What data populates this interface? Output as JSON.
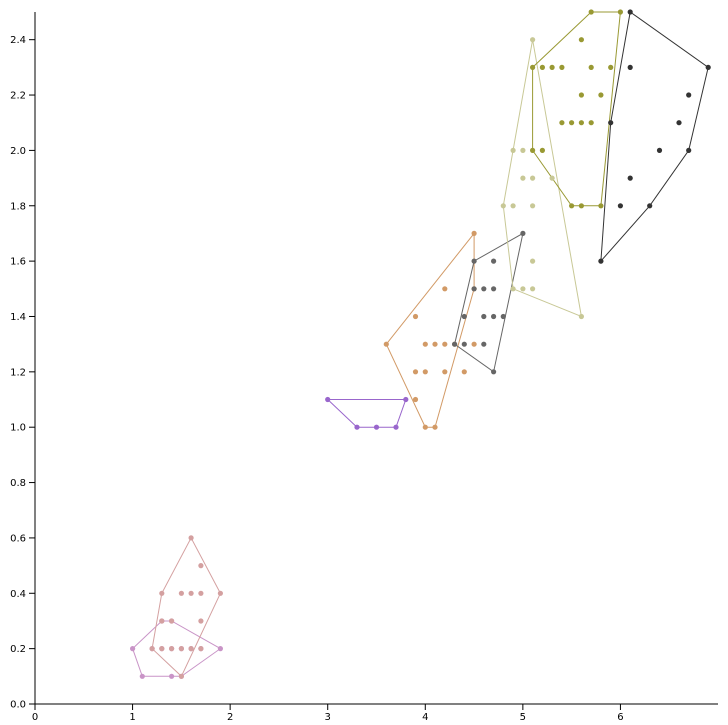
{
  "chart_data": {
    "type": "scatter",
    "title": "",
    "xlabel": "",
    "ylabel": "",
    "xlim": [
      0,
      7
    ],
    "ylim": [
      0,
      2.5
    ],
    "x_ticks": [
      "0",
      "1",
      "2",
      "3",
      "4",
      "5",
      "6"
    ],
    "y_ticks": [
      "0.0",
      "0.2",
      "0.4",
      "0.6",
      "0.8",
      "1.0",
      "1.2",
      "1.4",
      "1.6",
      "1.8",
      "2.0",
      "2.2",
      "2.4"
    ],
    "grid": false,
    "series": [
      {
        "color": "#c994c7",
        "points": [
          [
            1.0,
            0.2
          ],
          [
            1.1,
            0.1
          ],
          [
            1.2,
            0.2
          ],
          [
            1.3,
            0.2
          ],
          [
            1.4,
            0.2
          ],
          [
            1.4,
            0.1
          ],
          [
            1.5,
            0.2
          ],
          [
            1.5,
            0.1
          ],
          [
            1.6,
            0.2
          ],
          [
            1.7,
            0.2
          ],
          [
            1.9,
            0.2
          ],
          [
            1.4,
            0.3
          ],
          [
            1.3,
            0.3
          ]
        ],
        "hull": [
          [
            1.1,
            0.1
          ],
          [
            1.5,
            0.1
          ],
          [
            1.9,
            0.2
          ],
          [
            1.4,
            0.3
          ],
          [
            1.3,
            0.3
          ],
          [
            1.0,
            0.2
          ]
        ]
      },
      {
        "color": "#d4a0a0",
        "points": [
          [
            1.3,
            0.4
          ],
          [
            1.5,
            0.4
          ],
          [
            1.6,
            0.4
          ],
          [
            1.7,
            0.4
          ],
          [
            1.9,
            0.4
          ],
          [
            1.6,
            0.6
          ],
          [
            1.7,
            0.5
          ],
          [
            1.7,
            0.3
          ],
          [
            1.4,
            0.3
          ],
          [
            1.3,
            0.3
          ],
          [
            1.2,
            0.2
          ],
          [
            1.3,
            0.2
          ],
          [
            1.4,
            0.2
          ],
          [
            1.5,
            0.2
          ],
          [
            1.6,
            0.2
          ],
          [
            1.7,
            0.2
          ],
          [
            1.5,
            0.1
          ]
        ],
        "hull": [
          [
            1.5,
            0.1
          ],
          [
            1.9,
            0.4
          ],
          [
            1.6,
            0.6
          ],
          [
            1.3,
            0.4
          ],
          [
            1.2,
            0.2
          ]
        ]
      },
      {
        "color": "#9966cc",
        "points": [
          [
            3.0,
            1.1
          ],
          [
            3.3,
            1.0
          ],
          [
            3.5,
            1.0
          ],
          [
            3.7,
            1.0
          ],
          [
            3.8,
            1.1
          ]
        ],
        "hull": [
          [
            3.3,
            1.0
          ],
          [
            3.7,
            1.0
          ],
          [
            3.8,
            1.1
          ],
          [
            3.0,
            1.1
          ]
        ]
      },
      {
        "color": "#d29a66",
        "points": [
          [
            3.6,
            1.3
          ],
          [
            3.9,
            1.4
          ],
          [
            3.9,
            1.2
          ],
          [
            3.9,
            1.1
          ],
          [
            4.0,
            1.3
          ],
          [
            4.0,
            1.2
          ],
          [
            4.0,
            1.0
          ],
          [
            4.1,
            1.3
          ],
          [
            4.1,
            1.0
          ],
          [
            4.2,
            1.5
          ],
          [
            4.2,
            1.3
          ],
          [
            4.2,
            1.2
          ],
          [
            4.3,
            1.3
          ],
          [
            4.4,
            1.2
          ],
          [
            4.5,
            1.7
          ],
          [
            4.5,
            1.5
          ],
          [
            4.5,
            1.3
          ]
        ],
        "hull": [
          [
            4.0,
            1.0
          ],
          [
            4.1,
            1.0
          ],
          [
            4.5,
            1.5
          ],
          [
            4.5,
            1.7
          ],
          [
            3.6,
            1.3
          ]
        ]
      },
      {
        "color": "#666666",
        "points": [
          [
            4.3,
            1.3
          ],
          [
            4.4,
            1.4
          ],
          [
            4.4,
            1.3
          ],
          [
            4.5,
            1.6
          ],
          [
            4.5,
            1.5
          ],
          [
            4.6,
            1.5
          ],
          [
            4.6,
            1.4
          ],
          [
            4.6,
            1.3
          ],
          [
            4.7,
            1.6
          ],
          [
            4.7,
            1.5
          ],
          [
            4.7,
            1.4
          ],
          [
            4.7,
            1.2
          ],
          [
            4.8,
            1.4
          ],
          [
            5.0,
            1.7
          ]
        ],
        "hull": [
          [
            4.7,
            1.2
          ],
          [
            5.0,
            1.7
          ],
          [
            4.5,
            1.6
          ],
          [
            4.3,
            1.3
          ]
        ]
      },
      {
        "color": "#c8c896",
        "points": [
          [
            4.8,
            1.8
          ],
          [
            4.9,
            2.0
          ],
          [
            4.9,
            1.8
          ],
          [
            4.9,
            1.5
          ],
          [
            5.0,
            2.0
          ],
          [
            5.0,
            1.9
          ],
          [
            5.0,
            1.5
          ],
          [
            5.1,
            2.4
          ],
          [
            5.1,
            1.9
          ],
          [
            5.1,
            1.8
          ],
          [
            5.1,
            1.6
          ],
          [
            5.1,
            1.5
          ],
          [
            5.3,
            1.9
          ],
          [
            5.6,
            1.4
          ]
        ],
        "hull": [
          [
            5.6,
            1.4
          ],
          [
            5.1,
            2.4
          ],
          [
            4.8,
            1.8
          ],
          [
            4.9,
            1.5
          ]
        ]
      },
      {
        "color": "#999933",
        "points": [
          [
            5.1,
            2.3
          ],
          [
            5.1,
            2.0
          ],
          [
            5.2,
            2.3
          ],
          [
            5.2,
            2.0
          ],
          [
            5.3,
            2.3
          ],
          [
            5.4,
            2.3
          ],
          [
            5.4,
            2.1
          ],
          [
            5.5,
            2.1
          ],
          [
            5.5,
            1.8
          ],
          [
            5.6,
            2.4
          ],
          [
            5.6,
            2.2
          ],
          [
            5.6,
            2.1
          ],
          [
            5.6,
            1.8
          ],
          [
            5.7,
            2.5
          ],
          [
            5.7,
            2.3
          ],
          [
            5.7,
            2.1
          ],
          [
            5.8,
            2.2
          ],
          [
            5.8,
            1.8
          ],
          [
            5.9,
            2.3
          ],
          [
            6.0,
            2.5
          ]
        ],
        "hull": [
          [
            5.5,
            1.8
          ],
          [
            5.8,
            1.8
          ],
          [
            6.0,
            2.5
          ],
          [
            5.7,
            2.5
          ],
          [
            5.1,
            2.3
          ],
          [
            5.1,
            2.0
          ]
        ]
      },
      {
        "color": "#333333",
        "points": [
          [
            5.8,
            1.6
          ],
          [
            5.9,
            2.1
          ],
          [
            6.0,
            1.8
          ],
          [
            6.1,
            2.5
          ],
          [
            6.1,
            2.3
          ],
          [
            6.1,
            1.9
          ],
          [
            6.3,
            1.8
          ],
          [
            6.4,
            2.0
          ],
          [
            6.6,
            2.1
          ],
          [
            6.7,
            2.2
          ],
          [
            6.7,
            2.0
          ],
          [
            6.9,
            2.3
          ]
        ],
        "hull": [
          [
            5.8,
            1.6
          ],
          [
            6.3,
            1.8
          ],
          [
            6.7,
            2.0
          ],
          [
            6.9,
            2.3
          ],
          [
            6.1,
            2.5
          ],
          [
            5.9,
            2.1
          ]
        ]
      }
    ]
  }
}
